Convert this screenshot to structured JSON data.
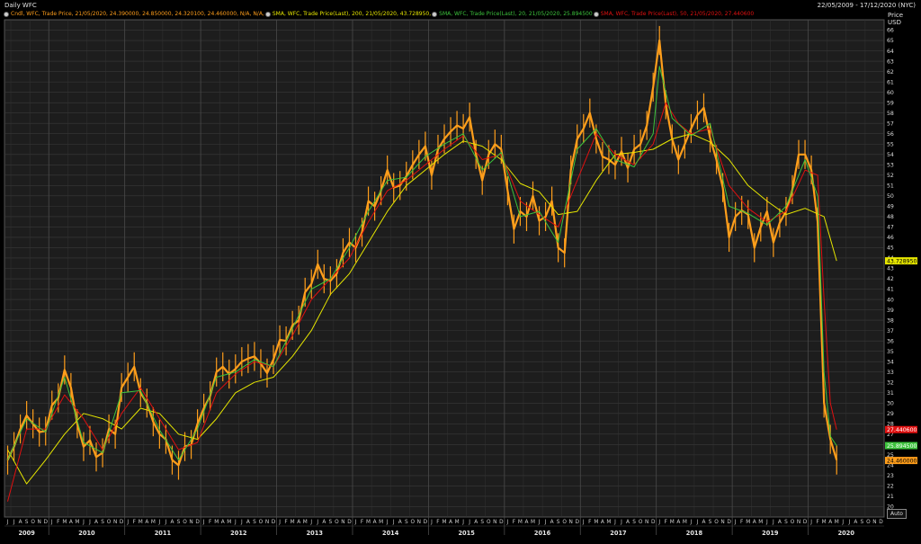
{
  "header": {
    "title": "Daily WFC",
    "date_range": "22/05/2009 - 17/12/2020 (NYC)"
  },
  "legend": [
    {
      "text": "Cndl, WFC, Trade Price,  21/05/2020, 24.390000, 24.850000, 24.320100, 24.460000,  N/A, N/A,",
      "color": "#ff9e1b"
    },
    {
      "text": "SMA, WFC, Trade Price(Last),  200,  21/05/2020, 43.728950,",
      "color": "#e6e600"
    },
    {
      "text": "SMA, WFC, Trade Price(Last),  20,  21/05/2020, 25.894500",
      "color": "#3cc23c"
    },
    {
      "text": "SMA, WFC, Trade Price(Last),  50,  21/05/2020, 27.440600",
      "color": "#e01010"
    }
  ],
  "auto_label": "Auto",
  "chart_data": {
    "type": "line",
    "title": "Daily WFC",
    "ylabel": "Price\nUSD",
    "ylabel_lines": [
      "Price",
      "USD"
    ],
    "ylim": [
      19,
      67
    ],
    "yticks": [
      20,
      21,
      22,
      23,
      24,
      25,
      26,
      27,
      28,
      29,
      30,
      31,
      32,
      33,
      34,
      35,
      36,
      37,
      38,
      39,
      40,
      41,
      42,
      43,
      44,
      45,
      46,
      47,
      48,
      49,
      50,
      51,
      52,
      53,
      54,
      55,
      56,
      57,
      58,
      59,
      60,
      61,
      62,
      63,
      64,
      65,
      66
    ],
    "year_labels": [
      "2009",
      "2010",
      "2011",
      "2012",
      "2013",
      "2014",
      "2015",
      "2016",
      "2017",
      "2018",
      "2019",
      "2020"
    ],
    "month_letters_first_year": [
      "J",
      "J",
      "A",
      "S",
      "O",
      "N",
      "D"
    ],
    "month_letters": [
      "J",
      "F",
      "M",
      "A",
      "M",
      "J",
      "J",
      "A",
      "S",
      "O",
      "N",
      "D"
    ],
    "start_month": "2009-06",
    "end_month": "2020-12",
    "series": [
      {
        "name": "Cndl, WFC, Trade Price",
        "color": "#ff9e1b",
        "x": [
          "2009-06",
          "2009-07",
          "2009-08",
          "2009-09",
          "2009-10",
          "2009-11",
          "2009-12",
          "2010-01",
          "2010-02",
          "2010-03",
          "2010-04",
          "2010-05",
          "2010-06",
          "2010-07",
          "2010-08",
          "2010-09",
          "2010-10",
          "2010-11",
          "2010-12",
          "2011-01",
          "2011-02",
          "2011-03",
          "2011-04",
          "2011-05",
          "2011-06",
          "2011-07",
          "2011-08",
          "2011-09",
          "2011-10",
          "2011-11",
          "2011-12",
          "2012-01",
          "2012-02",
          "2012-03",
          "2012-04",
          "2012-05",
          "2012-06",
          "2012-07",
          "2012-08",
          "2012-09",
          "2012-10",
          "2012-11",
          "2012-12",
          "2013-01",
          "2013-02",
          "2013-03",
          "2013-04",
          "2013-05",
          "2013-06",
          "2013-07",
          "2013-08",
          "2013-09",
          "2013-10",
          "2013-11",
          "2013-12",
          "2014-01",
          "2014-02",
          "2014-03",
          "2014-04",
          "2014-05",
          "2014-06",
          "2014-07",
          "2014-08",
          "2014-09",
          "2014-10",
          "2014-11",
          "2014-12",
          "2015-01",
          "2015-02",
          "2015-03",
          "2015-04",
          "2015-05",
          "2015-06",
          "2015-07",
          "2015-08",
          "2015-09",
          "2015-10",
          "2015-11",
          "2015-12",
          "2016-01",
          "2016-02",
          "2016-03",
          "2016-04",
          "2016-05",
          "2016-06",
          "2016-07",
          "2016-08",
          "2016-09",
          "2016-10",
          "2016-11",
          "2016-12",
          "2017-01",
          "2017-02",
          "2017-03",
          "2017-04",
          "2017-05",
          "2017-06",
          "2017-07",
          "2017-08",
          "2017-09",
          "2017-10",
          "2017-11",
          "2017-12",
          "2018-01",
          "2018-02",
          "2018-03",
          "2018-04",
          "2018-05",
          "2018-06",
          "2018-07",
          "2018-08",
          "2018-09",
          "2018-10",
          "2018-11",
          "2018-12",
          "2019-01",
          "2019-02",
          "2019-03",
          "2019-04",
          "2019-05",
          "2019-06",
          "2019-07",
          "2019-08",
          "2019-09",
          "2019-10",
          "2019-11",
          "2019-12",
          "2020-01",
          "2020-02",
          "2020-03",
          "2020-04",
          "2020-05"
        ],
        "values": [
          24.5,
          25.8,
          27.5,
          28.8,
          28.0,
          27.2,
          27.3,
          29.8,
          30.5,
          33.2,
          31.5,
          28.0,
          25.8,
          26.4,
          24.8,
          25.2,
          27.5,
          27.0,
          31.5,
          32.5,
          33.5,
          31.0,
          30.0,
          28.2,
          27.0,
          26.5,
          24.5,
          24.0,
          25.8,
          26.0,
          28.0,
          29.5,
          30.7,
          33.0,
          33.5,
          32.8,
          33.3,
          34.0,
          34.3,
          34.5,
          33.8,
          32.9,
          34.2,
          36.1,
          36.0,
          37.5,
          38.0,
          40.7,
          41.5,
          43.4,
          42.0,
          41.8,
          42.5,
          44.5,
          45.5,
          45.0,
          46.5,
          49.5,
          49.0,
          50.5,
          52.5,
          50.8,
          51.0,
          51.9,
          53.0,
          54.0,
          54.8,
          52.0,
          54.5,
          55.5,
          56.2,
          56.8,
          56.5,
          57.6,
          54.0,
          51.5,
          54.0,
          55.0,
          54.5,
          50.5,
          46.8,
          48.5,
          48.0,
          50.0,
          47.6,
          48.0,
          49.5,
          45.0,
          44.5,
          52.5,
          55.5,
          56.5,
          58.0,
          55.5,
          53.8,
          53.5,
          53.0,
          54.3,
          52.7,
          54.5,
          55.0,
          56.8,
          60.5,
          65.0,
          58.8,
          55.5,
          53.5,
          55.0,
          56.5,
          57.8,
          58.5,
          55.6,
          53.5,
          50.8,
          46.0,
          48.0,
          48.6,
          48.2,
          45.0,
          47.0,
          48.5,
          45.5,
          47.4,
          48.5,
          50.6,
          54.0,
          54.0,
          52.5,
          47.5,
          30.0,
          26.5,
          24.5
        ]
      },
      {
        "name": "SMA 200",
        "color": "#e6e600",
        "x": [
          "2009-06",
          "2009-09",
          "2009-12",
          "2010-03",
          "2010-06",
          "2010-09",
          "2010-12",
          "2011-03",
          "2011-06",
          "2011-09",
          "2011-12",
          "2012-03",
          "2012-06",
          "2012-09",
          "2012-12",
          "2013-03",
          "2013-06",
          "2013-09",
          "2013-12",
          "2014-03",
          "2014-06",
          "2014-09",
          "2014-12",
          "2015-03",
          "2015-06",
          "2015-09",
          "2015-12",
          "2016-03",
          "2016-06",
          "2016-09",
          "2016-12",
          "2017-03",
          "2017-06",
          "2017-09",
          "2017-12",
          "2018-03",
          "2018-06",
          "2018-09",
          "2018-12",
          "2019-03",
          "2019-06",
          "2019-09",
          "2019-12",
          "2020-03",
          "2020-05"
        ],
        "values": [
          25.5,
          22.2,
          24.5,
          27.0,
          29.0,
          28.5,
          27.5,
          29.5,
          29.0,
          27.0,
          26.5,
          28.5,
          31.0,
          32.0,
          32.5,
          34.5,
          37.0,
          40.5,
          42.5,
          45.5,
          48.5,
          51.0,
          52.5,
          54.0,
          55.3,
          54.8,
          53.5,
          51.2,
          50.4,
          48.2,
          48.5,
          51.5,
          54.0,
          54.2,
          54.5,
          55.5,
          56.0,
          55.2,
          53.5,
          51.0,
          49.5,
          48.2,
          48.8,
          48.0,
          43.729
        ]
      },
      {
        "name": "SMA 20",
        "color": "#3cc23c",
        "x": [
          "2009-06",
          "2009-09",
          "2009-12",
          "2010-03",
          "2010-06",
          "2010-09",
          "2010-12",
          "2011-03",
          "2011-06",
          "2011-09",
          "2011-12",
          "2012-03",
          "2012-06",
          "2012-09",
          "2012-12",
          "2013-03",
          "2013-06",
          "2013-09",
          "2013-12",
          "2014-03",
          "2014-06",
          "2014-09",
          "2014-12",
          "2015-03",
          "2015-06",
          "2015-09",
          "2015-12",
          "2016-03",
          "2016-06",
          "2016-09",
          "2016-12",
          "2017-03",
          "2017-06",
          "2017-09",
          "2017-12",
          "2018-01",
          "2018-03",
          "2018-06",
          "2018-09",
          "2018-12",
          "2019-03",
          "2019-06",
          "2019-09",
          "2019-12",
          "2020-02",
          "2020-03",
          "2020-04",
          "2020-05"
        ],
        "values": [
          24.5,
          28.5,
          27.2,
          32.5,
          26.2,
          25.2,
          31.0,
          31.2,
          27.4,
          24.5,
          27.5,
          32.5,
          33.0,
          34.2,
          33.5,
          37.2,
          41.0,
          42.0,
          45.0,
          48.5,
          51.5,
          51.8,
          53.8,
          55.0,
          56.0,
          52.5,
          54.2,
          48.0,
          48.5,
          45.5,
          54.5,
          56.5,
          53.5,
          52.8,
          56.0,
          62.5,
          57.5,
          55.8,
          57.0,
          49.0,
          48.3,
          47.2,
          49.0,
          53.5,
          50.0,
          33.0,
          26.8,
          25.8945
        ]
      },
      {
        "name": "SMA 50",
        "color": "#e01010",
        "x": [
          "2009-06",
          "2009-09",
          "2009-12",
          "2010-03",
          "2010-06",
          "2010-09",
          "2010-12",
          "2011-03",
          "2011-06",
          "2011-09",
          "2011-12",
          "2012-03",
          "2012-06",
          "2012-09",
          "2012-12",
          "2013-03",
          "2013-06",
          "2013-09",
          "2013-12",
          "2014-03",
          "2014-06",
          "2014-09",
          "2014-12",
          "2015-03",
          "2015-06",
          "2015-09",
          "2015-12",
          "2016-03",
          "2016-06",
          "2016-09",
          "2016-12",
          "2017-03",
          "2017-06",
          "2017-09",
          "2017-12",
          "2018-02",
          "2018-04",
          "2018-06",
          "2018-09",
          "2018-12",
          "2019-03",
          "2019-06",
          "2019-09",
          "2019-12",
          "2020-02",
          "2020-03",
          "2020-04",
          "2020-05"
        ],
        "values": [
          20.5,
          27.5,
          27.5,
          30.8,
          28.5,
          25.5,
          29.0,
          31.5,
          28.5,
          25.5,
          26.2,
          31.0,
          32.8,
          34.0,
          33.5,
          36.5,
          40.0,
          42.0,
          44.0,
          47.5,
          50.5,
          51.5,
          53.0,
          54.5,
          55.8,
          53.5,
          54.0,
          49.5,
          48.2,
          47.0,
          51.5,
          56.0,
          54.0,
          53.0,
          55.0,
          59.0,
          57.0,
          56.0,
          56.5,
          51.0,
          48.8,
          47.5,
          48.5,
          52.5,
          52.0,
          40.0,
          30.0,
          27.4406
        ]
      }
    ],
    "last_value_tags": [
      {
        "label": "43.728950",
        "value": 43.72895,
        "color": "#e6e600",
        "text_color": "#000"
      },
      {
        "label": "27.440600",
        "value": 27.4406,
        "color": "#e01010",
        "text_color": "#fff"
      },
      {
        "label": "25.894500",
        "value": 25.8945,
        "color": "#3cc23c",
        "text_color": "#fff"
      },
      {
        "label": "24.460000",
        "value": 24.46,
        "color": "#ff9e1b",
        "text_color": "#000"
      }
    ],
    "grid": true,
    "legend_position": "top-left"
  }
}
